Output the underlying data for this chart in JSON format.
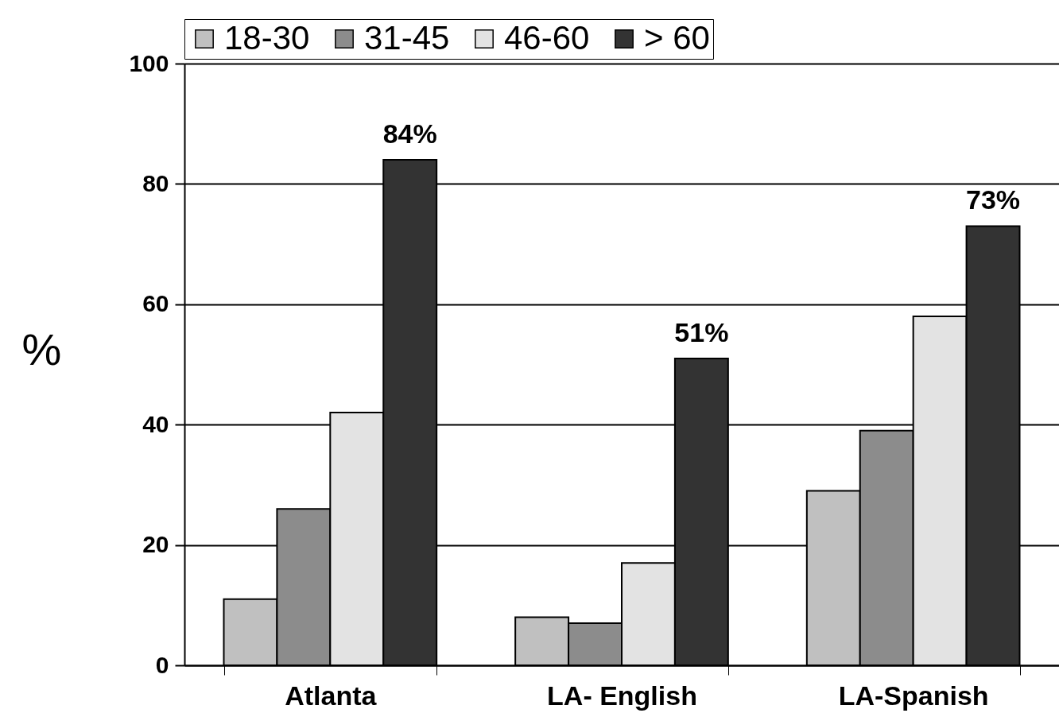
{
  "chart_data": {
    "type": "bar",
    "ylabel": "%",
    "categories": [
      "Atlanta",
      "LA- English",
      "LA-Spanish"
    ],
    "series": [
      {
        "name": "18-30",
        "color": "#c0c0c0",
        "values": [
          11,
          8,
          29
        ]
      },
      {
        "name": "31-45",
        "color": "#8c8c8c",
        "values": [
          26,
          7,
          39
        ]
      },
      {
        "name": "46-60",
        "color": "#e3e3e3",
        "values": [
          42,
          17,
          58
        ]
      },
      {
        "name": "> 60",
        "color": "#333333",
        "values": [
          84,
          51,
          73
        ],
        "value_labels": [
          "84%",
          "51%",
          "73%"
        ]
      }
    ],
    "ylim": [
      0,
      100
    ],
    "yticks": [
      0,
      20,
      40,
      60,
      80,
      100
    ],
    "grid": "y",
    "legend": "top"
  }
}
